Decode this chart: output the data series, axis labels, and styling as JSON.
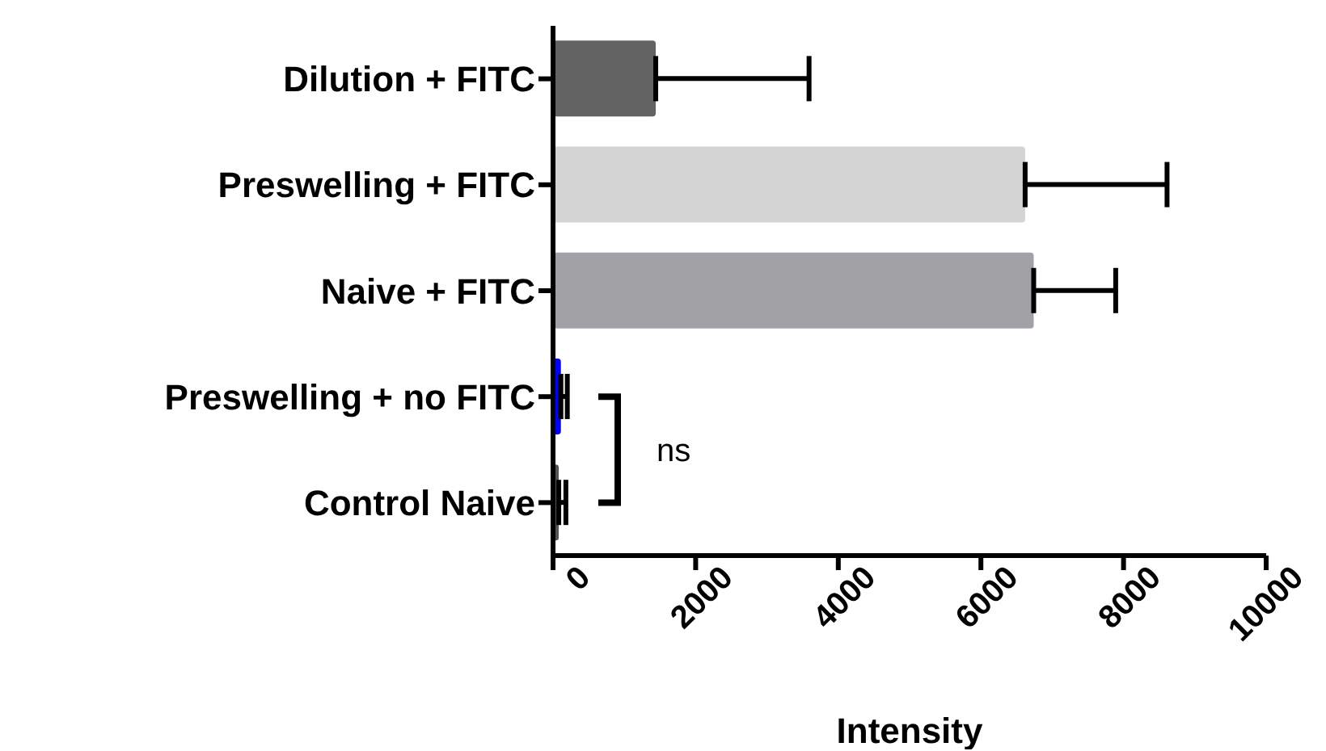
{
  "chart_data": {
    "type": "bar",
    "orientation": "horizontal",
    "xlabel": "Intensity",
    "categories": [
      "Dilution + FITC",
      "Preswelling + FITC",
      "Naive + FITC",
      "Preswelling + no FITC",
      "Control Naive"
    ],
    "values": [
      1440,
      6620,
      6740,
      110,
      80
    ],
    "colors": [
      "#636363",
      "#d4d4d4",
      "#a2a1a6",
      "#0000ff",
      "#555555"
    ],
    "errors": [
      [
        1440,
        3590
      ],
      [
        6620,
        8610
      ],
      [
        6740,
        7890
      ],
      [
        110,
        200
      ],
      [
        80,
        180
      ]
    ],
    "xlim": [
      0,
      10000
    ],
    "xticks": [
      0,
      2000,
      4000,
      6000,
      8000,
      10000
    ],
    "annotations": [
      "ns"
    ]
  }
}
